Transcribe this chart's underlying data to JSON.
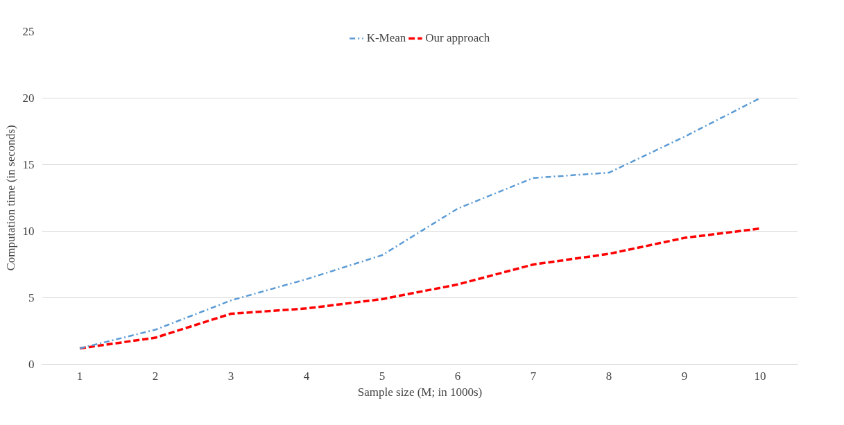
{
  "chart_data": {
    "type": "line",
    "xlabel": "Sample size (M; in 1000s)",
    "ylabel": "Computation time (in seconds)",
    "categories": [
      "1",
      "2",
      "3",
      "4",
      "5",
      "6",
      "7",
      "8",
      "9",
      "10"
    ],
    "series": [
      {
        "name": "K-Mean",
        "color": "#5b9bd5",
        "line_style": "dashdot",
        "values": [
          1.2,
          2.6,
          4.8,
          6.4,
          8.2,
          11.7,
          14.0,
          14.4,
          17.1,
          20.0
        ]
      },
      {
        "name": "Our approach",
        "color": "#ff0000",
        "line_style": "dashed",
        "values": [
          1.2,
          2.0,
          3.8,
          4.2,
          4.9,
          6.0,
          7.5,
          8.3,
          9.5,
          10.2
        ]
      }
    ],
    "ylim": [
      0,
      25
    ],
    "yticks": [
      0,
      5,
      10,
      15,
      20,
      25
    ],
    "grid": "y",
    "legend": "top",
    "marker": "none"
  }
}
